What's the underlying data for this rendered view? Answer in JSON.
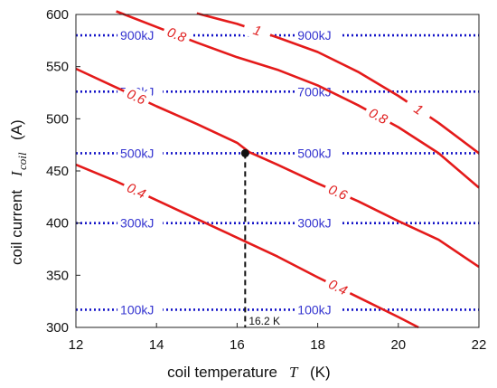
{
  "chart_data": {
    "type": "line",
    "xlabel": {
      "text": "coil temperature",
      "symbol": "T",
      "unit": "(K)"
    },
    "ylabel": {
      "text": "coil current",
      "symbol": "I",
      "subscript": "coil",
      "unit": "(A)"
    },
    "xlim": [
      12,
      22
    ],
    "ylim": [
      300,
      600
    ],
    "xticks": [
      12,
      14,
      16,
      18,
      20,
      22
    ],
    "yticks": [
      300,
      350,
      400,
      450,
      500,
      550,
      600
    ],
    "grid": false,
    "energy_lines": [
      {
        "label": "100kJ",
        "y": 317
      },
      {
        "label": "300kJ",
        "y": 400
      },
      {
        "label": "500kJ",
        "y": 467
      },
      {
        "label": "700kJ",
        "y": 526
      },
      {
        "label": "900kJ",
        "y": 580
      }
    ],
    "contours": [
      {
        "label": "0.4",
        "points": [
          [
            12,
            456
          ],
          [
            13,
            440
          ],
          [
            14,
            422
          ],
          [
            15,
            404
          ],
          [
            16,
            386
          ],
          [
            17,
            368
          ],
          [
            18,
            348
          ],
          [
            19,
            329
          ],
          [
            20,
            310
          ],
          [
            20.5,
            300
          ]
        ]
      },
      {
        "label": "0.6",
        "points": [
          [
            12,
            548
          ],
          [
            13,
            530
          ],
          [
            14,
            512
          ],
          [
            15,
            495
          ],
          [
            16,
            477
          ],
          [
            16.3,
            468
          ],
          [
            17,
            456
          ],
          [
            18,
            438
          ],
          [
            19,
            421
          ],
          [
            20,
            402
          ],
          [
            21,
            384
          ],
          [
            22,
            358
          ]
        ]
      },
      {
        "label": "0.8",
        "points": [
          [
            13,
            603
          ],
          [
            14,
            588
          ],
          [
            15,
            573
          ],
          [
            16,
            559
          ],
          [
            17,
            547
          ],
          [
            18,
            532
          ],
          [
            19,
            513
          ],
          [
            20,
            492
          ],
          [
            21,
            467
          ],
          [
            22,
            434
          ]
        ]
      },
      {
        "label": "1",
        "points": [
          [
            15,
            601
          ],
          [
            16,
            591
          ],
          [
            17,
            578
          ],
          [
            18,
            564
          ],
          [
            19,
            545
          ],
          [
            20,
            522
          ],
          [
            21,
            496
          ],
          [
            22,
            467
          ]
        ]
      }
    ],
    "operating_point": {
      "x": 16.2,
      "y": 467,
      "label": "16.2 K"
    }
  }
}
